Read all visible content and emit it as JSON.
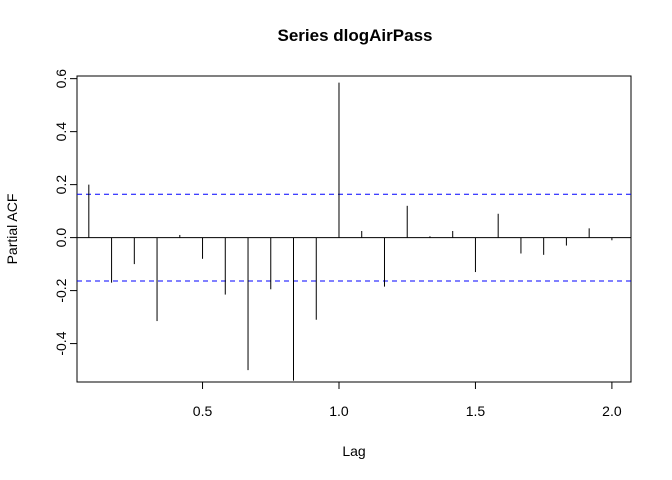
{
  "chart_data": {
    "type": "bar",
    "title": "Series  dlogAirPass",
    "xlabel": "Lag",
    "ylabel": "Partial ACF",
    "xlim": [
      0.04,
      2.07
    ],
    "ylim": [
      -0.545,
      0.61
    ],
    "x_ticks": [
      0.5,
      1.0,
      1.5,
      2.0
    ],
    "x_tick_labels": [
      "0.5",
      "1.0",
      "1.5",
      "2.0"
    ],
    "y_ticks": [
      -0.4,
      -0.2,
      0.0,
      0.2,
      0.4,
      0.6
    ],
    "y_tick_labels": [
      "-0.4",
      "-0.2",
      "0.0",
      "0.2",
      "0.4",
      "0.6"
    ],
    "grid": false,
    "x": [
      0.0833,
      0.1667,
      0.25,
      0.3333,
      0.4167,
      0.5,
      0.5833,
      0.6667,
      0.75,
      0.8333,
      0.9167,
      1.0,
      1.0833,
      1.1667,
      1.25,
      1.3333,
      1.4167,
      1.5,
      1.5833,
      1.6667,
      1.75,
      1.8333,
      1.9167,
      2.0
    ],
    "values": [
      0.2,
      -0.17,
      -0.1,
      -0.315,
      0.01,
      -0.08,
      -0.215,
      -0.5,
      -0.195,
      -0.54,
      -0.31,
      0.585,
      0.025,
      -0.185,
      0.12,
      0.005,
      0.025,
      -0.13,
      0.09,
      -0.06,
      -0.065,
      -0.03,
      0.035,
      -0.01
    ],
    "confidence_limits": [
      0.1636,
      -0.1636
    ],
    "colors": {
      "bars": "#000000",
      "confidence": "#0000ff",
      "axes": "#000000"
    }
  }
}
